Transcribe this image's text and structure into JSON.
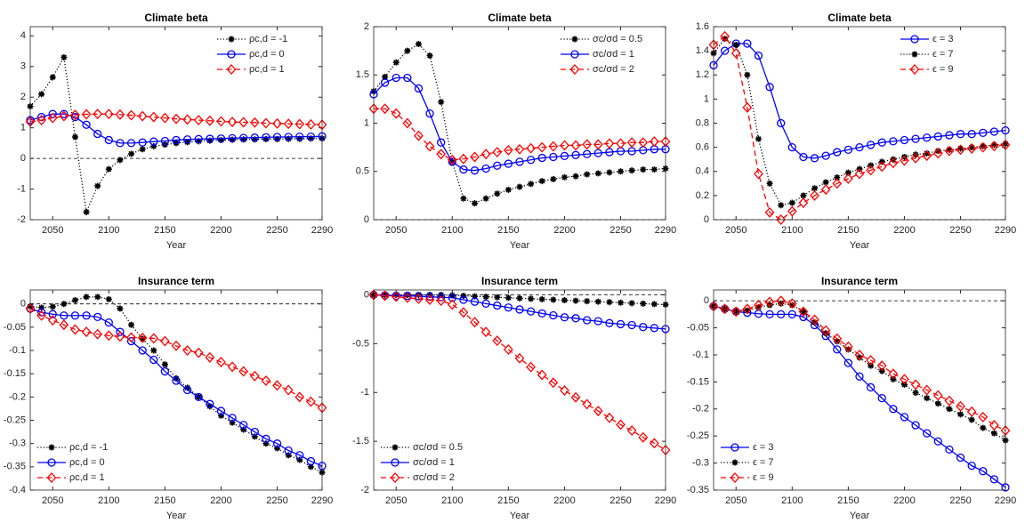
{
  "chart_data": [
    {
      "type": "line",
      "title": "Climate beta",
      "xlabel": "Year",
      "x": [
        2030,
        2040,
        2050,
        2060,
        2070,
        2080,
        2090,
        2100,
        2110,
        2120,
        2130,
        2140,
        2150,
        2160,
        2170,
        2180,
        2190,
        2200,
        2210,
        2220,
        2230,
        2240,
        2250,
        2260,
        2270,
        2280,
        2290
      ],
      "xlim": [
        2030,
        2290
      ],
      "xticks": [
        2050,
        2100,
        2150,
        2200,
        2250,
        2290
      ],
      "ylim": [
        -2,
        4.3
      ],
      "yticks": [
        -2,
        -1,
        0,
        1,
        2,
        3,
        4
      ],
      "zero_line": true,
      "legend": "northeast",
      "series": [
        {
          "name": "ρc,d = -1",
          "color": "#000000",
          "marker": "star",
          "line_style": "dotted",
          "values": [
            1.7,
            2.1,
            2.65,
            3.3,
            0.7,
            -1.75,
            -0.9,
            -0.35,
            -0.05,
            0.15,
            0.3,
            0.4,
            0.45,
            0.5,
            0.53,
            0.56,
            0.58,
            0.6,
            0.61,
            0.62,
            0.62,
            0.63,
            0.63,
            0.64,
            0.64,
            0.65,
            0.65
          ]
        },
        {
          "name": "ρc,d = 0",
          "color": "#0000ff",
          "marker": "circle",
          "line_style": "solid",
          "values": [
            1.25,
            1.35,
            1.45,
            1.45,
            1.35,
            1.1,
            0.8,
            0.6,
            0.5,
            0.5,
            0.52,
            0.55,
            0.57,
            0.6,
            0.62,
            0.63,
            0.64,
            0.65,
            0.66,
            0.67,
            0.68,
            0.69,
            0.7,
            0.7,
            0.71,
            0.71,
            0.72
          ]
        },
        {
          "name": "ρc,d = 1",
          "color": "#ff0000",
          "marker": "diamond",
          "line_style": "dashed",
          "values": [
            1.2,
            1.25,
            1.32,
            1.38,
            1.42,
            1.44,
            1.45,
            1.45,
            1.43,
            1.41,
            1.38,
            1.35,
            1.32,
            1.29,
            1.27,
            1.25,
            1.23,
            1.21,
            1.19,
            1.18,
            1.17,
            1.15,
            1.14,
            1.13,
            1.12,
            1.11,
            1.1
          ]
        }
      ]
    },
    {
      "type": "line",
      "title": "Climate beta",
      "xlabel": "Year",
      "x": [
        2030,
        2040,
        2050,
        2060,
        2070,
        2080,
        2090,
        2100,
        2110,
        2120,
        2130,
        2140,
        2150,
        2160,
        2170,
        2180,
        2190,
        2200,
        2210,
        2220,
        2230,
        2240,
        2250,
        2260,
        2270,
        2280,
        2290
      ],
      "xlim": [
        2030,
        2290
      ],
      "xticks": [
        2050,
        2100,
        2150,
        2200,
        2250,
        2290
      ],
      "ylim": [
        0,
        2
      ],
      "yticks": [
        0,
        0.5,
        1,
        1.5,
        2
      ],
      "zero_line": true,
      "legend": "northeast",
      "series": [
        {
          "name": "σc/σd = 0.5",
          "color": "#000000",
          "marker": "star",
          "line_style": "dotted",
          "values": [
            1.33,
            1.48,
            1.63,
            1.75,
            1.82,
            1.7,
            1.22,
            0.6,
            0.22,
            0.17,
            0.22,
            0.27,
            0.31,
            0.34,
            0.37,
            0.4,
            0.42,
            0.44,
            0.45,
            0.47,
            0.48,
            0.49,
            0.5,
            0.51,
            0.52,
            0.52,
            0.53
          ]
        },
        {
          "name": "σc/σd = 1",
          "color": "#0000ff",
          "marker": "circle",
          "line_style": "solid",
          "values": [
            1.3,
            1.42,
            1.47,
            1.47,
            1.36,
            1.1,
            0.8,
            0.6,
            0.52,
            0.51,
            0.53,
            0.56,
            0.58,
            0.6,
            0.62,
            0.64,
            0.65,
            0.66,
            0.67,
            0.68,
            0.69,
            0.7,
            0.71,
            0.71,
            0.72,
            0.73,
            0.73
          ]
        },
        {
          "name": "σc/σd = 2",
          "color": "#ff0000",
          "marker": "diamond",
          "line_style": "dashed",
          "values": [
            1.15,
            1.15,
            1.1,
            1.0,
            0.87,
            0.76,
            0.68,
            0.62,
            0.63,
            0.65,
            0.68,
            0.7,
            0.72,
            0.73,
            0.74,
            0.75,
            0.76,
            0.77,
            0.77,
            0.78,
            0.78,
            0.79,
            0.79,
            0.8,
            0.8,
            0.81,
            0.81
          ]
        }
      ]
    },
    {
      "type": "line",
      "title": "Climate beta",
      "xlabel": "Year",
      "x": [
        2030,
        2040,
        2050,
        2060,
        2070,
        2080,
        2090,
        2100,
        2110,
        2120,
        2130,
        2140,
        2150,
        2160,
        2170,
        2180,
        2190,
        2200,
        2210,
        2220,
        2230,
        2240,
        2250,
        2260,
        2270,
        2280,
        2290
      ],
      "xlim": [
        2030,
        2290
      ],
      "xticks": [
        2050,
        2100,
        2150,
        2200,
        2250,
        2290
      ],
      "ylim": [
        0,
        1.6
      ],
      "yticks": [
        0,
        0.2,
        0.4,
        0.6,
        0.8,
        1,
        1.2,
        1.4,
        1.6
      ],
      "zero_line": true,
      "legend": "northeast",
      "series": [
        {
          "name": "ϵ = 3",
          "color": "#0000ff",
          "marker": "circle",
          "line_style": "solid",
          "values": [
            1.28,
            1.4,
            1.46,
            1.46,
            1.36,
            1.1,
            0.8,
            0.6,
            0.52,
            0.51,
            0.53,
            0.56,
            0.58,
            0.6,
            0.62,
            0.64,
            0.65,
            0.66,
            0.67,
            0.68,
            0.69,
            0.7,
            0.71,
            0.71,
            0.72,
            0.73,
            0.74
          ]
        },
        {
          "name": "ϵ = 7",
          "color": "#000000",
          "marker": "star",
          "line_style": "dotted",
          "values": [
            1.38,
            1.5,
            1.45,
            1.2,
            0.67,
            0.3,
            0.12,
            0.14,
            0.2,
            0.26,
            0.31,
            0.35,
            0.39,
            0.42,
            0.45,
            0.48,
            0.5,
            0.52,
            0.54,
            0.55,
            0.57,
            0.58,
            0.59,
            0.6,
            0.61,
            0.62,
            0.63
          ]
        },
        {
          "name": "ϵ = 9",
          "color": "#ff0000",
          "marker": "diamond",
          "line_style": "dashed",
          "values": [
            1.45,
            1.52,
            1.38,
            0.93,
            0.38,
            0.06,
            0.0,
            0.07,
            0.14,
            0.2,
            0.25,
            0.3,
            0.34,
            0.38,
            0.41,
            0.44,
            0.47,
            0.49,
            0.51,
            0.53,
            0.55,
            0.57,
            0.58,
            0.59,
            0.6,
            0.61,
            0.62
          ]
        }
      ]
    },
    {
      "type": "line",
      "title": "Insurance term",
      "xlabel": "Year",
      "x": [
        2030,
        2040,
        2050,
        2060,
        2070,
        2080,
        2090,
        2100,
        2110,
        2120,
        2130,
        2140,
        2150,
        2160,
        2170,
        2180,
        2190,
        2200,
        2210,
        2220,
        2230,
        2240,
        2250,
        2260,
        2270,
        2280,
        2290
      ],
      "xlim": [
        2030,
        2290
      ],
      "xticks": [
        2050,
        2100,
        2150,
        2200,
        2250,
        2290
      ],
      "ylim": [
        -0.4,
        0.03
      ],
      "yticks": [
        -0.4,
        -0.35,
        -0.3,
        -0.25,
        -0.2,
        -0.15,
        -0.1,
        -0.05,
        0
      ],
      "zero_line": true,
      "legend": "southwest",
      "series": [
        {
          "name": "ρc,d = -1",
          "color": "#000000",
          "marker": "star",
          "line_style": "dotted",
          "values": [
            -0.005,
            -0.008,
            -0.006,
            0.0,
            0.008,
            0.015,
            0.015,
            0.01,
            -0.01,
            -0.045,
            -0.075,
            -0.1,
            -0.13,
            -0.16,
            -0.18,
            -0.2,
            -0.22,
            -0.24,
            -0.255,
            -0.27,
            -0.285,
            -0.3,
            -0.31,
            -0.325,
            -0.335,
            -0.35,
            -0.362
          ]
        },
        {
          "name": "ρc,d = 0",
          "color": "#0000ff",
          "marker": "circle",
          "line_style": "solid",
          "values": [
            -0.01,
            -0.018,
            -0.022,
            -0.025,
            -0.025,
            -0.025,
            -0.028,
            -0.04,
            -0.06,
            -0.08,
            -0.1,
            -0.12,
            -0.145,
            -0.165,
            -0.185,
            -0.2,
            -0.215,
            -0.23,
            -0.245,
            -0.26,
            -0.275,
            -0.29,
            -0.3,
            -0.315,
            -0.325,
            -0.338,
            -0.348
          ]
        },
        {
          "name": "ρc,d = 1",
          "color": "#ff0000",
          "marker": "diamond",
          "line_style": "dashed",
          "values": [
            -0.01,
            -0.025,
            -0.035,
            -0.045,
            -0.055,
            -0.06,
            -0.065,
            -0.068,
            -0.07,
            -0.072,
            -0.073,
            -0.074,
            -0.08,
            -0.09,
            -0.1,
            -0.105,
            -0.115,
            -0.125,
            -0.135,
            -0.145,
            -0.155,
            -0.165,
            -0.175,
            -0.185,
            -0.2,
            -0.21,
            -0.223
          ]
        }
      ]
    },
    {
      "type": "line",
      "title": "Insurance term",
      "xlabel": "Year",
      "x": [
        2030,
        2040,
        2050,
        2060,
        2070,
        2080,
        2090,
        2100,
        2110,
        2120,
        2130,
        2140,
        2150,
        2160,
        2170,
        2180,
        2190,
        2200,
        2210,
        2220,
        2230,
        2240,
        2250,
        2260,
        2270,
        2280,
        2290
      ],
      "xlim": [
        2030,
        2290
      ],
      "xticks": [
        2050,
        2100,
        2150,
        2200,
        2250,
        2290
      ],
      "ylim": [
        -2,
        0.05
      ],
      "yticks": [
        -2,
        -1.5,
        -1,
        -0.5,
        0
      ],
      "zero_line": true,
      "legend": "southwest",
      "series": [
        {
          "name": "σc/σd = 0.5",
          "color": "#000000",
          "marker": "star",
          "line_style": "dotted",
          "values": [
            0,
            0,
            0,
            0,
            0,
            0,
            0,
            -0.005,
            -0.01,
            -0.015,
            -0.02,
            -0.025,
            -0.03,
            -0.035,
            -0.04,
            -0.045,
            -0.05,
            -0.055,
            -0.06,
            -0.065,
            -0.07,
            -0.075,
            -0.08,
            -0.085,
            -0.09,
            -0.095,
            -0.1
          ]
        },
        {
          "name": "σc/σd = 1",
          "color": "#0000ff",
          "marker": "circle",
          "line_style": "solid",
          "values": [
            0,
            -0.005,
            -0.01,
            -0.01,
            -0.015,
            -0.02,
            -0.025,
            -0.03,
            -0.05,
            -0.07,
            -0.09,
            -0.11,
            -0.13,
            -0.15,
            -0.17,
            -0.19,
            -0.21,
            -0.23,
            -0.24,
            -0.26,
            -0.27,
            -0.29,
            -0.3,
            -0.31,
            -0.33,
            -0.34,
            -0.35
          ]
        },
        {
          "name": "σc/σd = 2",
          "color": "#ff0000",
          "marker": "diamond",
          "line_style": "dashed",
          "values": [
            0,
            -0.01,
            -0.02,
            -0.03,
            -0.04,
            -0.05,
            -0.06,
            -0.1,
            -0.18,
            -0.28,
            -0.38,
            -0.47,
            -0.56,
            -0.65,
            -0.74,
            -0.82,
            -0.9,
            -0.98,
            -1.05,
            -1.12,
            -1.19,
            -1.26,
            -1.33,
            -1.39,
            -1.46,
            -1.52,
            -1.59
          ]
        }
      ]
    },
    {
      "type": "line",
      "title": "Insurance term",
      "xlabel": "Year",
      "x": [
        2030,
        2040,
        2050,
        2060,
        2070,
        2080,
        2090,
        2100,
        2110,
        2120,
        2130,
        2140,
        2150,
        2160,
        2170,
        2180,
        2190,
        2200,
        2210,
        2220,
        2230,
        2240,
        2250,
        2260,
        2270,
        2280,
        2290
      ],
      "xlim": [
        2030,
        2290
      ],
      "xticks": [
        2050,
        2100,
        2150,
        2200,
        2250,
        2290
      ],
      "ylim": [
        -0.35,
        0.02
      ],
      "yticks": [
        -0.35,
        -0.3,
        -0.25,
        -0.2,
        -0.15,
        -0.1,
        -0.05,
        0
      ],
      "zero_line": true,
      "legend": "southwest",
      "series": [
        {
          "name": "ϵ = 3",
          "color": "#0000ff",
          "marker": "circle",
          "line_style": "solid",
          "values": [
            -0.01,
            -0.015,
            -0.02,
            -0.022,
            -0.024,
            -0.025,
            -0.025,
            -0.025,
            -0.03,
            -0.045,
            -0.065,
            -0.09,
            -0.115,
            -0.14,
            -0.16,
            -0.18,
            -0.2,
            -0.215,
            -0.23,
            -0.245,
            -0.26,
            -0.275,
            -0.29,
            -0.305,
            -0.315,
            -0.33,
            -0.345
          ]
        },
        {
          "name": "ϵ = 7",
          "color": "#000000",
          "marker": "star",
          "line_style": "dotted",
          "values": [
            -0.01,
            -0.015,
            -0.02,
            -0.018,
            -0.012,
            -0.008,
            -0.005,
            -0.008,
            -0.02,
            -0.04,
            -0.06,
            -0.075,
            -0.09,
            -0.105,
            -0.12,
            -0.13,
            -0.145,
            -0.155,
            -0.17,
            -0.18,
            -0.19,
            -0.2,
            -0.21,
            -0.22,
            -0.235,
            -0.245,
            -0.258
          ]
        },
        {
          "name": "ϵ = 9",
          "color": "#ff0000",
          "marker": "diamond",
          "line_style": "dashed",
          "values": [
            -0.01,
            -0.015,
            -0.02,
            -0.015,
            -0.008,
            -0.002,
            0.0,
            -0.005,
            -0.02,
            -0.035,
            -0.055,
            -0.07,
            -0.085,
            -0.1,
            -0.11,
            -0.12,
            -0.135,
            -0.145,
            -0.155,
            -0.165,
            -0.175,
            -0.185,
            -0.195,
            -0.205,
            -0.215,
            -0.23,
            -0.24
          ]
        }
      ]
    }
  ]
}
